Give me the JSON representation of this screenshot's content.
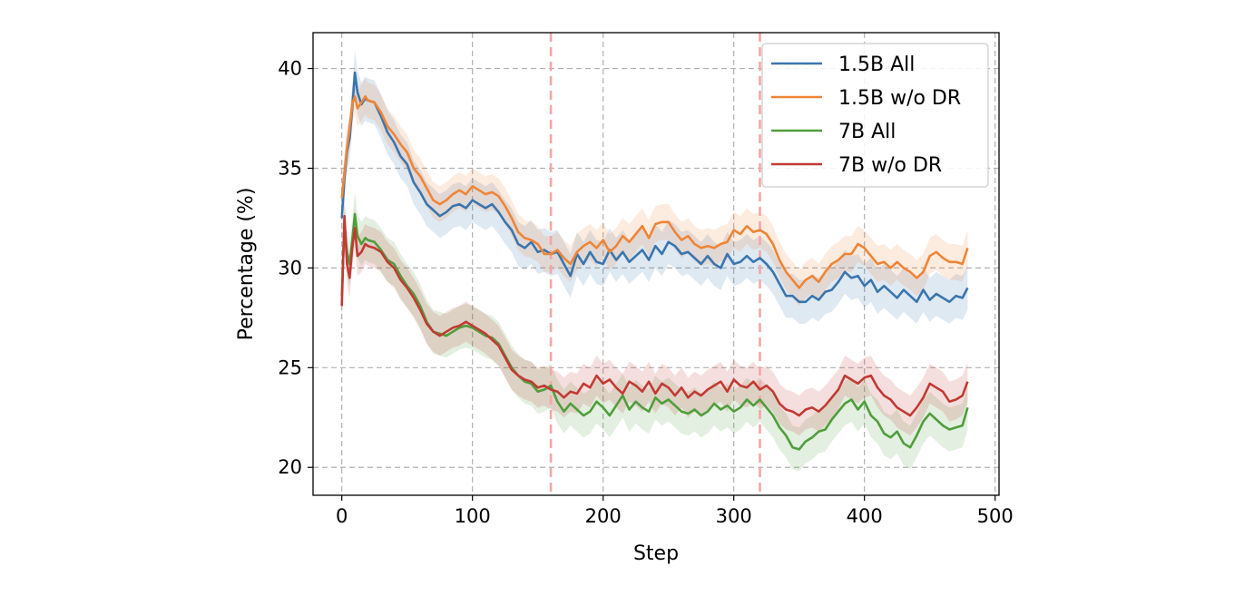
{
  "chart_data": {
    "type": "line",
    "title": "",
    "xlabel": "Step",
    "ylabel": "Percentage (%)",
    "xlim": [
      -22,
      503
    ],
    "ylim": [
      18.6,
      41.8
    ],
    "xticks": [
      0,
      100,
      200,
      300,
      400,
      500
    ],
    "yticks": [
      20,
      25,
      30,
      35,
      40
    ],
    "grid": true,
    "legend_position": "top-right",
    "vlines": [
      {
        "x": 160,
        "color": "#f4a6a6"
      },
      {
        "x": 320,
        "color": "#f4a6a6"
      }
    ],
    "series": [
      {
        "name": "1.5B All",
        "color": "#3a75ae",
        "band": 1.1,
        "x": [
          0,
          2,
          4,
          6,
          8,
          10,
          12,
          15,
          18,
          20,
          25,
          30,
          35,
          40,
          45,
          50,
          55,
          60,
          65,
          70,
          75,
          80,
          85,
          90,
          95,
          100,
          105,
          110,
          115,
          120,
          125,
          130,
          135,
          140,
          145,
          150,
          155,
          160,
          165,
          170,
          175,
          180,
          185,
          190,
          195,
          200,
          205,
          210,
          215,
          220,
          225,
          230,
          235,
          240,
          245,
          250,
          255,
          260,
          265,
          270,
          275,
          280,
          285,
          290,
          295,
          300,
          305,
          310,
          315,
          320,
          325,
          330,
          335,
          340,
          345,
          350,
          355,
          360,
          365,
          370,
          375,
          380,
          385,
          390,
          395,
          400,
          405,
          410,
          415,
          420,
          425,
          430,
          435,
          440,
          445,
          450,
          455,
          460,
          465,
          470,
          475,
          479
        ],
        "y": [
          32.5,
          34.5,
          35.8,
          36.5,
          38.0,
          39.8,
          38.8,
          38.2,
          38.5,
          38.4,
          38.3,
          37.6,
          36.8,
          36.3,
          35.6,
          35.2,
          34.3,
          33.8,
          33.2,
          32.9,
          32.6,
          32.8,
          33.1,
          33.2,
          33.0,
          33.4,
          33.2,
          33.0,
          33.2,
          32.8,
          32.3,
          31.9,
          31.2,
          31.0,
          31.3,
          30.8,
          30.9,
          30.7,
          30.8,
          30.2,
          29.6,
          30.7,
          30.2,
          30.8,
          30.3,
          30.2,
          30.9,
          30.4,
          30.8,
          30.3,
          30.6,
          30.9,
          30.4,
          31.1,
          30.7,
          31.3,
          31.1,
          30.7,
          30.8,
          30.5,
          30.2,
          30.6,
          30.2,
          30.0,
          30.7,
          30.2,
          30.3,
          30.6,
          30.3,
          30.5,
          30.2,
          29.8,
          29.2,
          28.6,
          28.6,
          28.3,
          28.3,
          28.6,
          28.4,
          28.8,
          28.9,
          29.3,
          29.8,
          29.5,
          29.6,
          29.1,
          29.4,
          28.8,
          29.1,
          28.8,
          28.5,
          28.9,
          28.6,
          28.3,
          28.9,
          28.4,
          28.7,
          28.5,
          28.3,
          28.6,
          28.5,
          29.0
        ]
      },
      {
        "name": "1.5B w/o DR",
        "color": "#ef8536",
        "band": 0.9,
        "x": [
          0,
          2,
          4,
          6,
          8,
          10,
          12,
          15,
          18,
          20,
          25,
          30,
          35,
          40,
          45,
          50,
          55,
          60,
          65,
          70,
          75,
          80,
          85,
          90,
          95,
          100,
          105,
          110,
          115,
          120,
          125,
          130,
          135,
          140,
          145,
          150,
          155,
          160,
          165,
          170,
          175,
          180,
          185,
          190,
          195,
          200,
          205,
          210,
          215,
          220,
          225,
          230,
          235,
          240,
          245,
          250,
          255,
          260,
          265,
          270,
          275,
          280,
          285,
          290,
          295,
          300,
          305,
          310,
          315,
          320,
          325,
          330,
          335,
          340,
          345,
          350,
          355,
          360,
          365,
          370,
          375,
          380,
          385,
          390,
          395,
          400,
          405,
          410,
          415,
          420,
          425,
          430,
          435,
          440,
          445,
          450,
          455,
          460,
          465,
          470,
          475,
          479
        ],
        "y": [
          33.5,
          34.8,
          36.0,
          37.0,
          38.2,
          38.6,
          38.0,
          38.3,
          38.6,
          38.4,
          38.3,
          37.8,
          37.1,
          36.7,
          36.2,
          35.8,
          35.0,
          34.6,
          34.0,
          33.4,
          33.2,
          33.4,
          33.7,
          33.9,
          33.7,
          34.1,
          33.9,
          33.7,
          33.8,
          33.6,
          33.1,
          32.5,
          31.8,
          31.5,
          31.4,
          31.2,
          30.7,
          30.7,
          30.9,
          30.5,
          30.2,
          30.8,
          31.1,
          31.3,
          31.0,
          31.4,
          30.8,
          31.1,
          31.6,
          31.3,
          31.7,
          32.1,
          31.5,
          32.2,
          32.3,
          32.3,
          31.8,
          31.4,
          31.6,
          31.2,
          31.0,
          31.1,
          31.0,
          31.2,
          31.3,
          31.9,
          31.7,
          32.1,
          31.8,
          31.9,
          31.7,
          31.2,
          30.4,
          29.8,
          29.4,
          29.0,
          29.4,
          29.6,
          29.3,
          29.8,
          30.2,
          30.4,
          30.7,
          30.7,
          31.2,
          31.0,
          30.6,
          30.2,
          30.3,
          30.0,
          30.3,
          30.0,
          29.8,
          29.5,
          29.8,
          30.6,
          30.8,
          30.5,
          30.3,
          30.3,
          30.2,
          31.0
        ]
      },
      {
        "name": "7B All",
        "color": "#4f9e3c",
        "band": 1.1,
        "x": [
          0,
          2,
          4,
          6,
          8,
          10,
          12,
          15,
          18,
          20,
          25,
          30,
          35,
          40,
          45,
          50,
          55,
          60,
          65,
          70,
          75,
          80,
          85,
          90,
          95,
          100,
          105,
          110,
          115,
          120,
          125,
          130,
          135,
          140,
          145,
          150,
          155,
          160,
          165,
          170,
          175,
          180,
          185,
          190,
          195,
          200,
          205,
          210,
          215,
          220,
          225,
          230,
          235,
          240,
          245,
          250,
          255,
          260,
          265,
          270,
          275,
          280,
          285,
          290,
          295,
          300,
          305,
          310,
          315,
          320,
          325,
          330,
          335,
          340,
          345,
          350,
          355,
          360,
          365,
          370,
          375,
          380,
          385,
          390,
          395,
          400,
          405,
          410,
          415,
          420,
          425,
          430,
          435,
          440,
          445,
          450,
          455,
          460,
          465,
          470,
          475,
          479
        ],
        "y": [
          28.6,
          32.2,
          30.8,
          30.2,
          31.4,
          32.7,
          31.6,
          31.2,
          31.5,
          31.4,
          31.3,
          30.9,
          30.4,
          30.2,
          29.6,
          29.1,
          28.7,
          28.1,
          27.3,
          26.8,
          26.7,
          26.6,
          26.8,
          27.0,
          27.1,
          27.0,
          26.8,
          26.6,
          26.5,
          26.2,
          25.6,
          25.0,
          24.6,
          24.3,
          24.2,
          23.8,
          23.9,
          24.1,
          23.3,
          22.8,
          23.2,
          22.9,
          22.6,
          22.8,
          23.3,
          23.0,
          22.6,
          23.1,
          23.6,
          22.9,
          23.3,
          23.0,
          22.8,
          23.5,
          23.2,
          23.4,
          23.1,
          22.8,
          22.7,
          22.9,
          22.6,
          22.8,
          23.2,
          22.9,
          23.1,
          22.8,
          23.0,
          23.4,
          23.1,
          23.4,
          23.0,
          22.6,
          22.0,
          21.6,
          21.0,
          20.9,
          21.3,
          21.5,
          21.8,
          21.9,
          22.4,
          22.8,
          23.2,
          23.4,
          22.9,
          23.3,
          22.6,
          22.3,
          21.7,
          21.5,
          21.8,
          21.2,
          21.0,
          21.6,
          22.3,
          22.7,
          22.4,
          22.1,
          21.9,
          22.0,
          22.1,
          23.0
        ]
      },
      {
        "name": "7B w/o DR",
        "color": "#c23a33",
        "band": 1.0,
        "x": [
          0,
          2,
          4,
          6,
          8,
          10,
          12,
          15,
          18,
          20,
          25,
          30,
          35,
          40,
          45,
          50,
          55,
          60,
          65,
          70,
          75,
          80,
          85,
          90,
          95,
          100,
          105,
          110,
          115,
          120,
          125,
          130,
          135,
          140,
          145,
          150,
          155,
          160,
          165,
          170,
          175,
          180,
          185,
          190,
          195,
          200,
          205,
          210,
          215,
          220,
          225,
          230,
          235,
          240,
          245,
          250,
          255,
          260,
          265,
          270,
          275,
          280,
          285,
          290,
          295,
          300,
          305,
          310,
          315,
          320,
          325,
          330,
          335,
          340,
          345,
          350,
          355,
          360,
          365,
          370,
          375,
          380,
          385,
          390,
          395,
          400,
          405,
          410,
          415,
          420,
          425,
          430,
          435,
          440,
          445,
          450,
          455,
          460,
          465,
          470,
          475,
          479
        ],
        "y": [
          28.1,
          32.6,
          30.2,
          29.5,
          31.0,
          32.0,
          30.6,
          30.8,
          31.2,
          31.1,
          31.0,
          30.8,
          30.3,
          30.0,
          29.4,
          29.0,
          28.5,
          27.9,
          27.2,
          26.8,
          26.6,
          26.8,
          27.0,
          27.1,
          27.3,
          27.1,
          26.9,
          26.7,
          26.4,
          26.1,
          25.5,
          24.9,
          24.6,
          24.4,
          24.3,
          24.0,
          24.1,
          23.9,
          23.8,
          23.5,
          23.8,
          23.7,
          24.2,
          24.0,
          24.6,
          24.2,
          24.4,
          24.0,
          23.7,
          24.3,
          24.1,
          23.8,
          24.3,
          23.7,
          24.2,
          24.0,
          23.6,
          24.0,
          23.5,
          23.8,
          23.6,
          23.9,
          24.1,
          24.3,
          23.8,
          24.4,
          24.1,
          24.0,
          24.3,
          23.9,
          24.1,
          23.8,
          23.2,
          22.9,
          22.8,
          22.6,
          22.9,
          23.0,
          22.8,
          23.1,
          23.5,
          23.9,
          24.6,
          24.4,
          24.2,
          24.5,
          24.6,
          24.0,
          23.6,
          23.4,
          23.0,
          22.8,
          22.6,
          23.0,
          23.5,
          24.2,
          24.0,
          23.8,
          23.3,
          23.4,
          23.6,
          24.3
        ]
      }
    ]
  }
}
